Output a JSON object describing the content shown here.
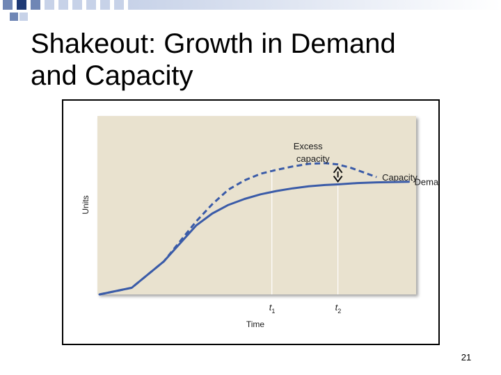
{
  "slide": {
    "title_line1": "Shakeout: Growth in Demand",
    "title_line2": "and Capacity",
    "page_number": "21",
    "decoration_colors": [
      "#1f3a75",
      "#6f86b5",
      "#c7d2e8"
    ]
  },
  "chart_data": {
    "type": "line",
    "title": "",
    "xlabel": "Time",
    "ylabel": "Units",
    "xlim": [
      0,
      100
    ],
    "ylim": [
      0,
      100
    ],
    "grid": false,
    "background_color": "#e9e2cf",
    "vertical_markers": [
      {
        "label_main": "t",
        "label_sub": "1",
        "x": 53.5
      },
      {
        "label_main": "t",
        "label_sub": "2",
        "x": 74
      }
    ],
    "series": [
      {
        "name": "Capacity",
        "style": "dashed",
        "color": "#3a5ba8",
        "x": [
          0,
          10,
          20,
          30,
          35,
          40,
          45,
          50,
          55,
          60,
          65,
          70,
          74,
          78,
          82,
          86
        ],
        "y": [
          0,
          5,
          25,
          55,
          68,
          79,
          86,
          91,
          94,
          96.5,
          98.5,
          99,
          98,
          95.5,
          92,
          88.5
        ]
      },
      {
        "name": "Demand",
        "style": "solid",
        "color": "#3a5ba8",
        "x": [
          0,
          10,
          20,
          30,
          35,
          40,
          45,
          50,
          55,
          60,
          65,
          70,
          74,
          80,
          86,
          90,
          96
        ],
        "y": [
          0,
          5,
          25,
          52,
          61,
          67.5,
          72,
          75.5,
          78,
          80,
          81.5,
          82.5,
          83,
          84,
          84.5,
          84.7,
          85
        ]
      }
    ],
    "annotations": [
      {
        "text_line1": "Excess",
        "text_line2": "capacity"
      }
    ]
  }
}
